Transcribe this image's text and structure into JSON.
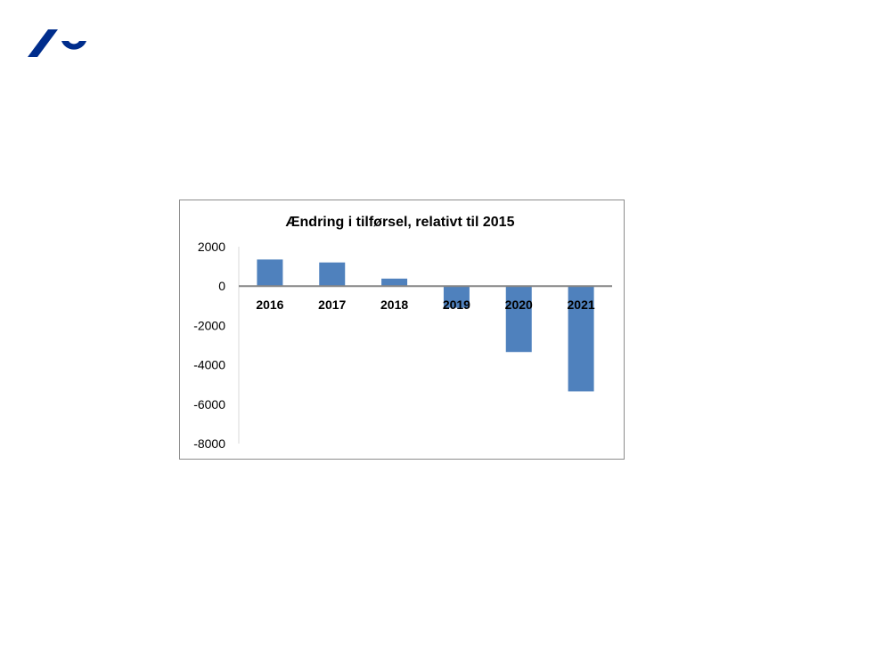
{
  "slide": {
    "logo": "aarhus-university-logo"
  },
  "colors": {
    "brand": "#002d8c",
    "bar": "#4f81bd",
    "frame": "#8c8c8c"
  },
  "chart_data": {
    "type": "bar",
    "title": "Ændring i tilførsel, relativt til 2015",
    "xlabel": "",
    "ylabel": "",
    "categories": [
      "2016",
      "2017",
      "2018",
      "2019",
      "2020",
      "2021"
    ],
    "values": [
      1350,
      1200,
      380,
      -1100,
      -3350,
      -5350
    ],
    "ylim": [
      -8000,
      2000
    ],
    "yticks": [
      "2000",
      "0",
      "-2000",
      "-4000",
      "-6000",
      "-8000"
    ],
    "grid": false,
    "legend": "none"
  }
}
